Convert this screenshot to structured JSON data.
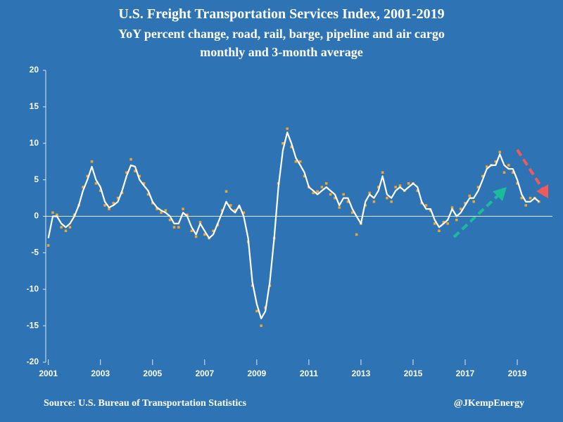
{
  "chart_data": {
    "type": "scatter_line",
    "title": "U.S. Freight Transportation Services Index, 2001-2019",
    "subtitle": [
      "YoY percent change, road, rail, barge, pipeline and air cargo",
      "monthly and 3-month average"
    ],
    "source": "Source: U.S. Bureau of Transportation Statistics",
    "credit": "@JKempEnergy",
    "x": [
      2001.0,
      2001.17,
      2001.33,
      2001.5,
      2001.67,
      2001.83,
      2002.0,
      2002.17,
      2002.33,
      2002.5,
      2002.67,
      2002.83,
      2003.0,
      2003.17,
      2003.33,
      2003.5,
      2003.67,
      2003.83,
      2004.0,
      2004.17,
      2004.33,
      2004.5,
      2004.67,
      2004.83,
      2005.0,
      2005.17,
      2005.33,
      2005.5,
      2005.67,
      2005.83,
      2006.0,
      2006.17,
      2006.33,
      2006.5,
      2006.67,
      2006.83,
      2007.0,
      2007.17,
      2007.33,
      2007.5,
      2007.67,
      2007.83,
      2008.0,
      2008.17,
      2008.33,
      2008.5,
      2008.67,
      2008.83,
      2009.0,
      2009.17,
      2009.33,
      2009.5,
      2009.67,
      2009.83,
      2010.0,
      2010.17,
      2010.33,
      2010.5,
      2010.67,
      2010.83,
      2011.0,
      2011.17,
      2011.33,
      2011.5,
      2011.67,
      2011.83,
      2012.0,
      2012.17,
      2012.33,
      2012.5,
      2012.67,
      2012.83,
      2013.0,
      2013.17,
      2013.33,
      2013.5,
      2013.67,
      2013.83,
      2014.0,
      2014.17,
      2014.33,
      2014.5,
      2014.67,
      2014.83,
      2015.0,
      2015.17,
      2015.33,
      2015.5,
      2015.67,
      2015.83,
      2016.0,
      2016.17,
      2016.33,
      2016.5,
      2016.67,
      2016.83,
      2017.0,
      2017.17,
      2017.33,
      2017.5,
      2017.67,
      2017.83,
      2018.0,
      2018.17,
      2018.33,
      2018.5,
      2018.67,
      2018.83,
      2019.0,
      2019.17,
      2019.33,
      2019.5,
      2019.67,
      2019.83
    ],
    "series": [
      {
        "color": "#f5a623",
        "values": [
          -4,
          0.5,
          0.2,
          -1.5,
          -2,
          -1.5,
          0.2,
          1.5,
          4,
          5.5,
          7.5,
          4.5,
          3.5,
          1.5,
          1,
          1.8,
          2.5,
          3.2,
          6,
          7.8,
          6.2,
          5.5,
          4.5,
          3,
          1.8,
          1,
          0.5,
          0.8,
          -0.5,
          -1.5,
          -1.5,
          1,
          0.2,
          -2,
          -2.8,
          -0.8,
          -2.5,
          -3,
          -2,
          -1.2,
          0.8,
          3.4,
          1.5,
          0.8,
          1.2,
          0.5,
          -3.5,
          -9.5,
          -13,
          -15,
          -12.5,
          -9.5,
          -3,
          4.5,
          10,
          12,
          9.5,
          7.5,
          7.5,
          5.5,
          4,
          3.2,
          3.4,
          4,
          4.5,
          3,
          2.5,
          1.2,
          3,
          2,
          0.5,
          -2.5,
          -1,
          1.5,
          3.2,
          2,
          4,
          6,
          2.5,
          2,
          4,
          4.2,
          3.5,
          4.5,
          4.5,
          3.5,
          1.8,
          1.5,
          0.8,
          -1,
          -2,
          -0.8,
          -1,
          1.2,
          -0.5,
          1,
          1.8,
          2.8,
          2,
          4,
          5.5,
          6.8,
          7,
          7.5,
          8.8,
          6,
          7,
          6,
          4.5,
          2.5,
          1.5,
          2.5,
          2.5,
          2
        ]
      },
      {
        "color": "#ffffff",
        "values": [
          -3,
          0,
          0,
          -1,
          -1.5,
          -1,
          0,
          1.5,
          3.5,
          5,
          6.8,
          5,
          4,
          2,
          1.2,
          1.5,
          2,
          3.5,
          5.5,
          7,
          6.8,
          5,
          4.2,
          3.5,
          2,
          1.2,
          0.8,
          0.5,
          0,
          -1,
          -1,
          0.5,
          0,
          -1.5,
          -2.5,
          -1,
          -2,
          -3,
          -2.5,
          -1,
          0.5,
          2,
          1,
          0.5,
          1.5,
          0,
          -3,
          -9,
          -12,
          -14,
          -13,
          -9,
          -3,
          4,
          9,
          11.5,
          10,
          8,
          7,
          6,
          4,
          3.5,
          3,
          3.5,
          4,
          3.5,
          3,
          1.5,
          2.5,
          2.5,
          1,
          0,
          -1,
          2,
          3,
          2.5,
          3.5,
          5.5,
          3,
          2.5,
          3.5,
          4,
          3.5,
          4,
          4.5,
          4,
          2,
          1,
          1,
          -0.5,
          -1.5,
          -1,
          -0.5,
          1,
          0,
          0.5,
          1.5,
          2.5,
          2.5,
          3.5,
          5,
          6.5,
          7,
          7,
          8.5,
          7,
          6.5,
          6.5,
          5,
          3,
          2,
          2,
          2.5,
          2
        ]
      }
    ],
    "xlim": [
      2000.9,
      2020.35
    ],
    "xticks": [
      2001,
      2003,
      2005,
      2007,
      2009,
      2011,
      2013,
      2015,
      2017,
      2019
    ],
    "ylim": [
      -20,
      20
    ],
    "yticks": [
      -20,
      -15,
      -10,
      -5,
      0,
      5,
      10,
      15,
      20
    ],
    "grid": false
  }
}
